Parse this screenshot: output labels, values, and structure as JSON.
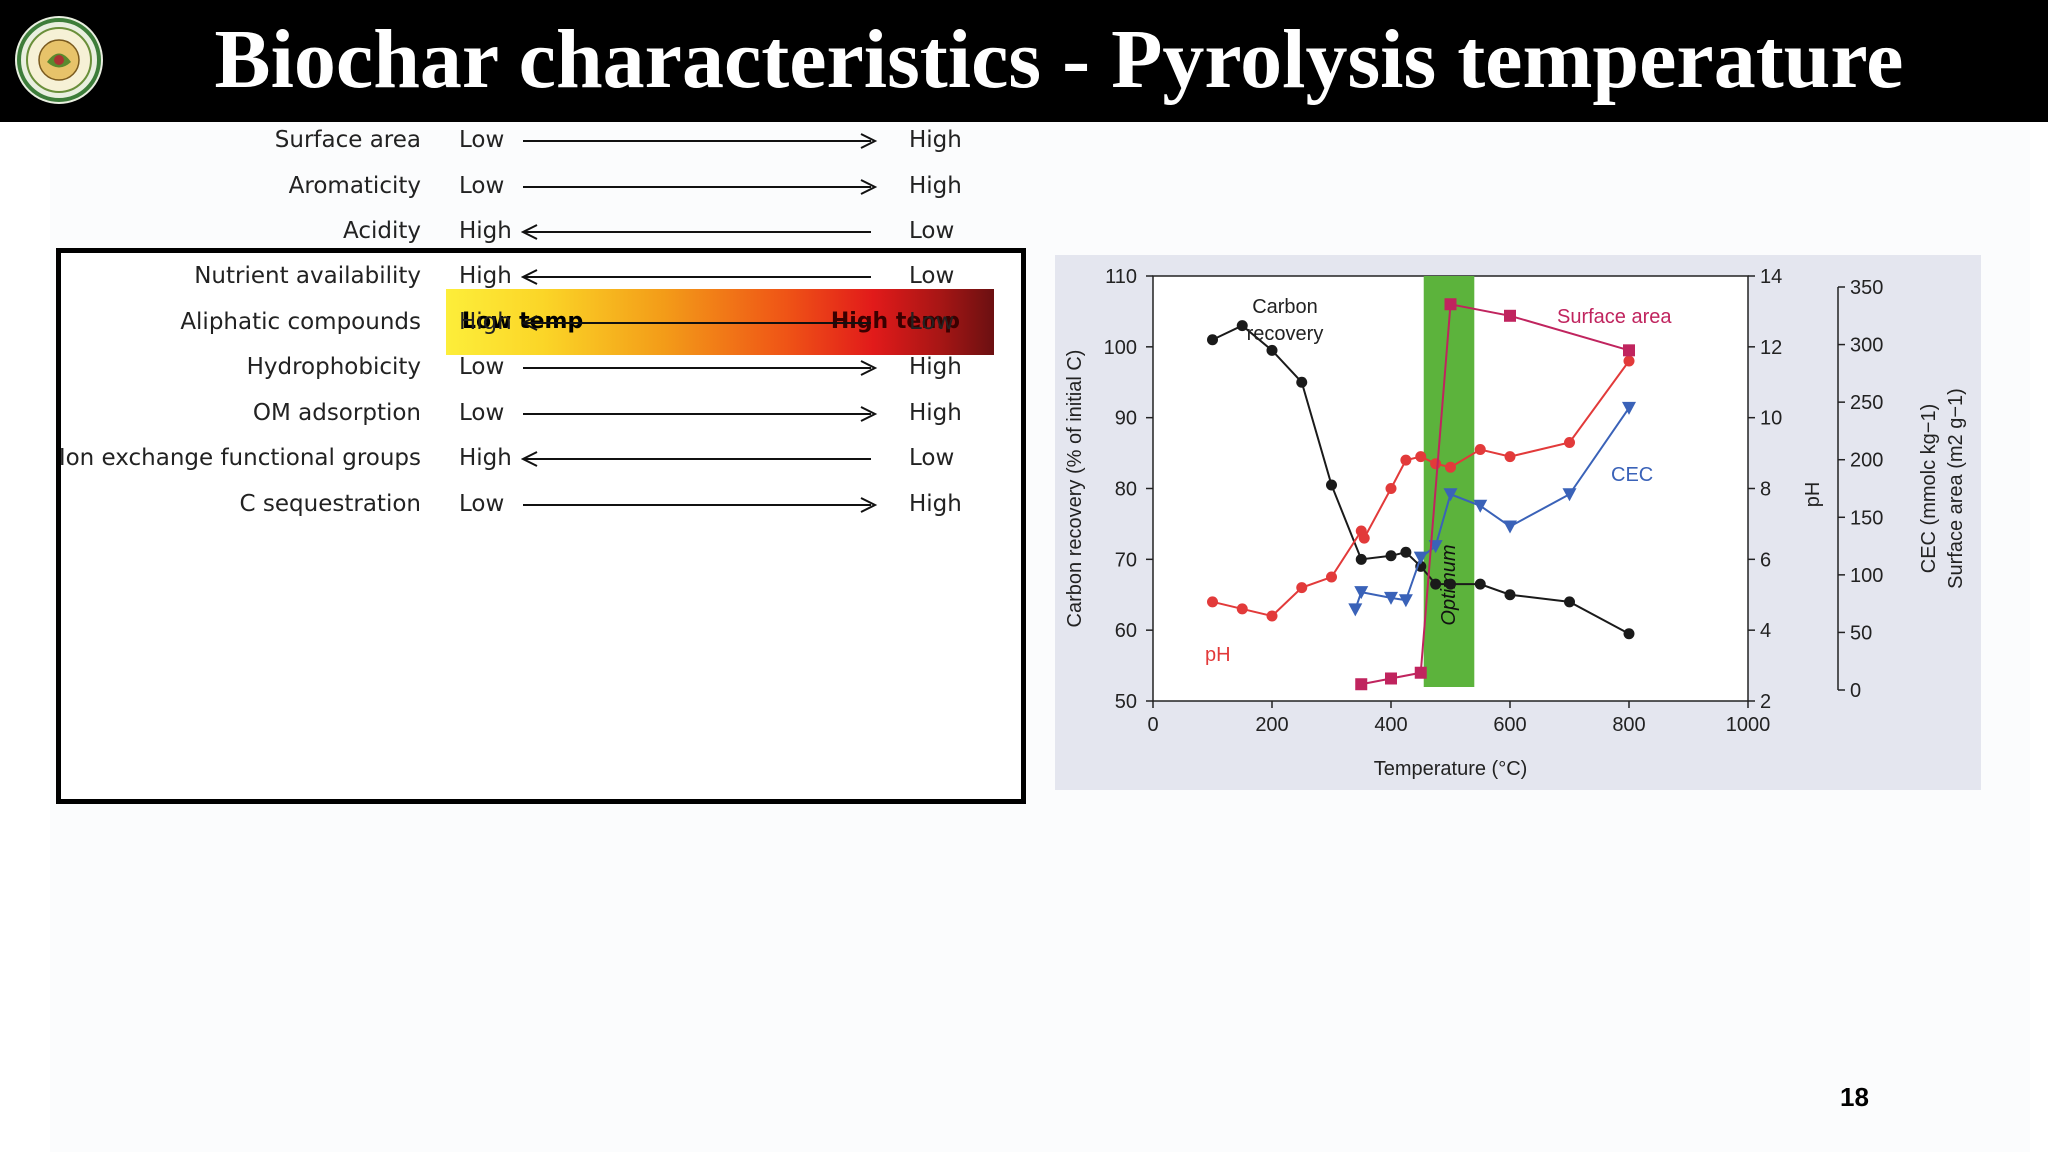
{
  "slide": {
    "title": "Biochar characteristics - Pyrolysis temperature",
    "page_number": "18",
    "logo": "university-seal-logo"
  },
  "table": {
    "header": {
      "low": "Low temp",
      "high": "High temp"
    },
    "rows": [
      {
        "property": "Surface area",
        "start": "Low",
        "end": "High",
        "direction": "right"
      },
      {
        "property": "Aromaticity",
        "start": "Low",
        "end": "High",
        "direction": "right"
      },
      {
        "property": "Acidity",
        "start": "High",
        "end": "Low",
        "direction": "left"
      },
      {
        "property": "Nutrient availability",
        "start": "High",
        "end": "Low",
        "direction": "left"
      },
      {
        "property": "Aliphatic compounds",
        "start": "High",
        "end": "Low",
        "direction": "left"
      },
      {
        "property": "Hydrophobicity",
        "start": "Low",
        "end": "High",
        "direction": "right"
      },
      {
        "property": "OM adsorption",
        "start": "Low",
        "end": "High",
        "direction": "right"
      },
      {
        "property": "Ion exchange functional groups",
        "start": "High",
        "end": "Low",
        "direction": "left"
      },
      {
        "property": "C sequestration",
        "start": "Low",
        "end": "High",
        "direction": "right"
      }
    ]
  },
  "chart_data": {
    "type": "line",
    "title": "",
    "xlabel": "Temperature (°C)",
    "xlim": [
      0,
      1000
    ],
    "xticks": [
      0,
      200,
      400,
      600,
      800,
      1000
    ],
    "ylabel_left": "Carbon recovery (% of initial C)",
    "ylim_left": [
      50,
      110
    ],
    "yticks_left": [
      50,
      60,
      70,
      80,
      90,
      100,
      110
    ],
    "ylabel_right1": "pH",
    "ylim_right1": [
      2,
      14
    ],
    "yticks_right1": [
      2,
      4,
      6,
      8,
      10,
      12,
      14
    ],
    "ylabel_right2_line1": "CEC (mmolc kg−1)",
    "ylabel_right2_line2": "Surface area (m2 g−1)",
    "ylim_right2": [
      0,
      350
    ],
    "yticks_right2": [
      0,
      50,
      100,
      150,
      200,
      250,
      300,
      350
    ],
    "optimum_band": {
      "x0": 455,
      "x1": 540,
      "label": "Optimum",
      "color": "#5cb33c"
    },
    "series": [
      {
        "name": "Carbon recovery",
        "axis": "left",
        "color": "#1a1a1a",
        "marker": "circle",
        "label_line1": "Carbon",
        "label_line2": "recovery",
        "x": [
          100,
          150,
          200,
          250,
          300,
          350,
          400,
          425,
          450,
          475,
          500,
          550,
          600,
          700,
          800
        ],
        "y": [
          101,
          103,
          99.5,
          95,
          80.5,
          70,
          70.5,
          71,
          69,
          66.5,
          66.5,
          66.5,
          65,
          64,
          59.5
        ]
      },
      {
        "name": "pH",
        "axis": "right1",
        "color": "#e23a3a",
        "marker": "circle",
        "x": [
          100,
          150,
          200,
          250,
          300,
          350,
          355,
          400,
          425,
          450,
          475,
          500,
          550,
          600,
          700,
          800
        ],
        "y": [
          4.8,
          4.6,
          4.4,
          5.2,
          5.5,
          6.8,
          6.6,
          8.0,
          8.8,
          8.9,
          8.7,
          8.6,
          9.1,
          8.9,
          9.3,
          11.6
        ]
      },
      {
        "name": "CEC",
        "axis": "right2",
        "color": "#3a62b8",
        "marker": "triangle-down",
        "x": [
          340,
          350,
          400,
          425,
          450,
          475,
          500,
          550,
          600,
          700,
          800
        ],
        "y": [
          70,
          85,
          80,
          78,
          115,
          125,
          170,
          160,
          142,
          170,
          245
        ]
      },
      {
        "name": "Surface area",
        "axis": "right2",
        "color": "#c0245e",
        "marker": "square",
        "x": [
          350,
          400,
          450,
          500,
          600,
          800
        ],
        "y": [
          5,
          10,
          15,
          335,
          325,
          295
        ]
      }
    ]
  }
}
